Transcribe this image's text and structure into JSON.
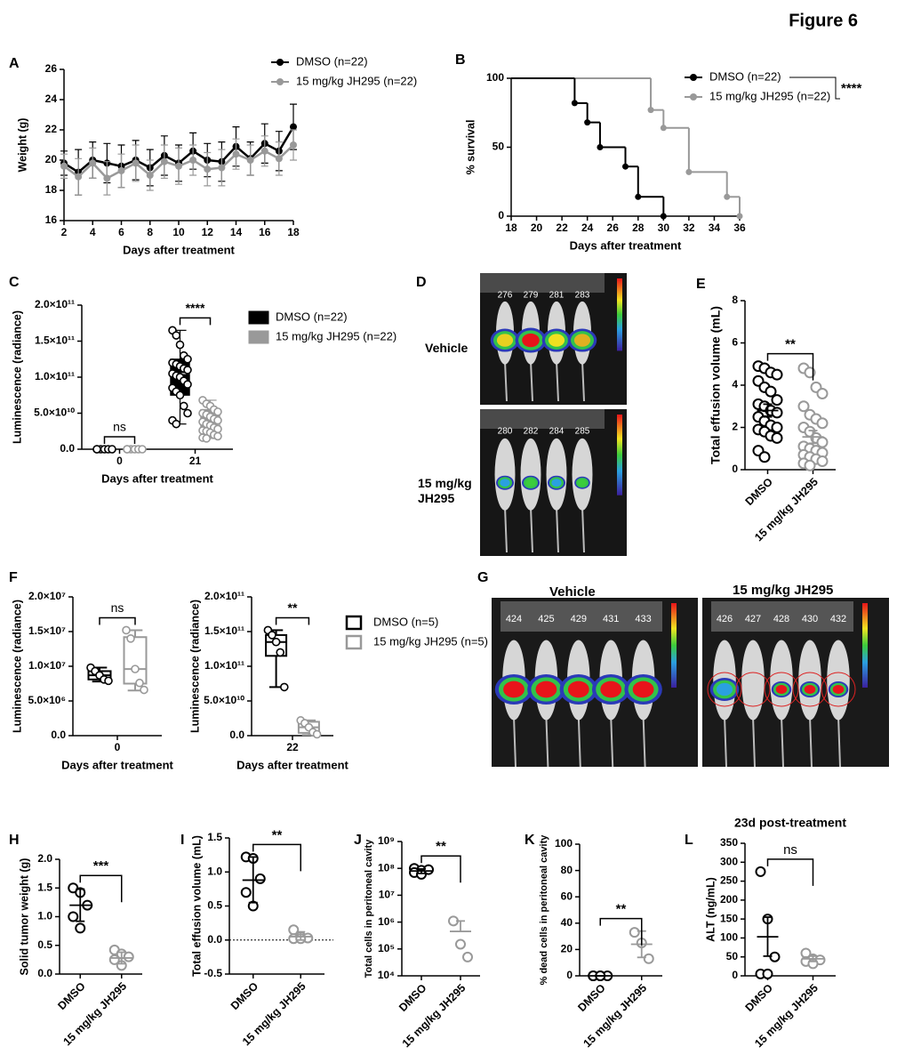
{
  "figure_title": "Figure 6",
  "chart_data": [
    {
      "panel": "A",
      "type": "line",
      "ylabel": "Weight (g)",
      "xlabel": "Days after treatment",
      "x": [
        2,
        3,
        4,
        5,
        6,
        7,
        8,
        9,
        10,
        11,
        12,
        13,
        14,
        15,
        16,
        17,
        18
      ],
      "xlim": [
        2,
        18
      ],
      "xticks": [
        2,
        4,
        6,
        8,
        10,
        12,
        14,
        16,
        18
      ],
      "ylim": [
        16,
        26
      ],
      "yticks": [
        16,
        18,
        20,
        22,
        24,
        26
      ],
      "series": [
        {
          "name": "DMSO (n=22)",
          "color": "#000000",
          "values": [
            19.8,
            19.2,
            20.0,
            19.8,
            19.6,
            20.0,
            19.5,
            20.3,
            19.8,
            20.6,
            20.0,
            19.9,
            20.9,
            20.1,
            21.1,
            20.6,
            22.2
          ],
          "errors": [
            0.8,
            1.5,
            1.2,
            1.3,
            1.4,
            1.3,
            1.2,
            1.3,
            1.2,
            1.2,
            1.1,
            1.3,
            1.3,
            1.1,
            1.3,
            1.3,
            1.5
          ]
        },
        {
          "name": "15 mg/kg JH295 (n=22)",
          "color": "#999999",
          "values": [
            19.6,
            18.9,
            19.8,
            18.8,
            19.3,
            19.8,
            19.0,
            19.9,
            19.6,
            20.0,
            19.4,
            19.5,
            20.4,
            20.0,
            20.6,
            20.1,
            21.0
          ],
          "errors": [
            0.8,
            1.2,
            1.0,
            1.1,
            1.1,
            1.2,
            1.0,
            1.1,
            1.2,
            1.0,
            1.1,
            1.2,
            1.0,
            1.0,
            1.0,
            1.1,
            1.0
          ]
        }
      ]
    },
    {
      "panel": "B",
      "type": "step",
      "ylabel": "% survival",
      "xlabel": "Days after treatment",
      "significance": "****",
      "xlim": [
        18,
        36
      ],
      "xticks": [
        18,
        20,
        22,
        24,
        26,
        28,
        30,
        32,
        34,
        36
      ],
      "ylim": [
        0,
        100
      ],
      "yticks": [
        0,
        50,
        100
      ],
      "series": [
        {
          "name": "DMSO (n=22)",
          "color": "#000000",
          "x": [
            18,
            23,
            24,
            25,
            27,
            28,
            30
          ],
          "values": [
            100,
            82,
            68,
            50,
            36,
            14,
            0
          ]
        },
        {
          "name": "15 mg/kg JH295 (n=22)",
          "color": "#999999",
          "x": [
            18,
            29,
            30,
            32,
            35,
            36
          ],
          "values": [
            100,
            77,
            64,
            32,
            14,
            0
          ]
        }
      ]
    },
    {
      "panel": "C",
      "type": "box",
      "filled": true,
      "ylabel": "Luminescence (radiance)",
      "xlabel": "Days after treatment",
      "categories": [
        "0",
        "21"
      ],
      "significance": [
        "ns",
        "****"
      ],
      "ylim": [
        0,
        200000000000
      ],
      "yticks": [
        {
          "value": 0,
          "label": "0.0"
        },
        {
          "value": 50000000000,
          "label": "5.0×10¹⁰"
        },
        {
          "value": 100000000000,
          "label": "1.0×10¹¹"
        },
        {
          "value": 150000000000,
          "label": "1.5×10¹¹"
        },
        {
          "value": 200000000000,
          "label": "2.0×10¹¹"
        }
      ],
      "series": [
        {
          "name": "DMSO (n=22)",
          "color": "#000000",
          "min": [
            0,
            35000000000
          ],
          "q1": [
            0,
            75000000000
          ],
          "median": [
            0,
            105000000000
          ],
          "q3": [
            0,
            125000000000
          ],
          "max": [
            0,
            165000000000
          ],
          "points": [
            [
              0,
              0,
              0,
              0,
              0,
              0
            ],
            [
              165000000000,
              158000000000,
              145000000000,
              130000000000,
              125000000000,
              120000000000,
              118000000000,
              115000000000,
              112000000000,
              110000000000,
              105000000000,
              102000000000,
              100000000000,
              95000000000,
              90000000000,
              85000000000,
              80000000000,
              75000000000,
              60000000000,
              50000000000,
              40000000000,
              35000000000
            ]
          ]
        },
        {
          "name": "15 mg/kg JH295 (n=22)",
          "color": "#999999",
          "min": [
            0,
            15000000000
          ],
          "q1": [
            0,
            25000000000
          ],
          "median": [
            0,
            35000000000
          ],
          "q3": [
            0,
            55000000000
          ],
          "max": [
            0,
            68000000000
          ],
          "points": [
            [
              0,
              0,
              0,
              0,
              0,
              0
            ],
            [
              68000000000,
              63000000000,
              60000000000,
              55000000000,
              52000000000,
              50000000000,
              48000000000,
              45000000000,
              42000000000,
              40000000000,
              38000000000,
              35000000000,
              33000000000,
              30000000000,
              28000000000,
              26000000000,
              25000000000,
              23000000000,
              20000000000,
              18000000000,
              16000000000,
              15000000000
            ]
          ]
        }
      ]
    },
    {
      "panel": "E",
      "type": "dot",
      "ylabel": "Total effusion volume (mL)",
      "categories": [
        "DMSO",
        "15 mg/kg JH295"
      ],
      "colors": [
        "#000000",
        "#999999"
      ],
      "significance": "**",
      "ylim": [
        0,
        8
      ],
      "yticks": [
        0,
        2,
        4,
        6,
        8
      ],
      "points": [
        [
          4.9,
          4.8,
          4.6,
          4.5,
          4.2,
          3.9,
          3.7,
          3.3,
          3.1,
          3.0,
          2.8,
          2.7,
          2.5,
          2.3,
          2.1,
          2.0,
          1.9,
          1.8,
          1.6,
          1.5,
          0.9,
          0.6
        ],
        [
          4.8,
          4.6,
          3.9,
          3.6,
          3.0,
          2.6,
          2.4,
          2.2,
          2.0,
          1.8,
          1.5,
          1.3,
          1.1,
          1.0,
          0.9,
          0.8,
          0.7,
          0.6,
          0.5,
          0.4,
          0.3,
          0.2
        ]
      ],
      "center": [
        2.8,
        1.55
      ],
      "low": [
        2.5,
        1.25
      ],
      "high": [
        3.1,
        1.85
      ]
    },
    {
      "panel": "F",
      "type": "box",
      "filled": false,
      "ylabel": "Luminescence (radiance)",
      "xlabel": "Days after treatment",
      "categories": [
        "0"
      ],
      "significance": [
        "ns"
      ],
      "ylim": [
        0,
        20000000
      ],
      "yticks": [
        {
          "value": 0,
          "label": "0.0"
        },
        {
          "value": 5000000,
          "label": "5.0×10⁶"
        },
        {
          "value": 10000000,
          "label": "1.0×10⁷"
        },
        {
          "value": 15000000,
          "label": "1.5×10⁷"
        },
        {
          "value": 20000000,
          "label": "2.0×10⁷"
        }
      ],
      "series": [
        {
          "color": "#000000",
          "min": [
            7800000
          ],
          "q1": [
            8100000
          ],
          "median": [
            8700000
          ],
          "q3": [
            9300000
          ],
          "max": [
            9800000
          ],
          "points": [
            [
              9800000,
              9300000,
              8700000,
              8100000,
              7900000
            ]
          ]
        },
        {
          "color": "#999999",
          "min": [
            6500000
          ],
          "q1": [
            7500000
          ],
          "median": [
            9600000
          ],
          "q3": [
            14200000
          ],
          "max": [
            15200000
          ],
          "points": [
            [
              15200000,
              14000000,
              9600000,
              7600000,
              6600000
            ]
          ]
        }
      ]
    },
    {
      "type": "box",
      "filled": false,
      "ylabel": "Luminescence (radiance)",
      "xlabel": "Days after treatment",
      "categories": [
        "22"
      ],
      "significance": [
        "**"
      ],
      "ylim": [
        0,
        200000000000
      ],
      "yticks": [
        {
          "value": 0,
          "label": "0.0"
        },
        {
          "value": 50000000000,
          "label": "5.0×10¹⁰"
        },
        {
          "value": 100000000000,
          "label": "1.0×10¹¹"
        },
        {
          "value": 150000000000,
          "label": "1.5×10¹¹"
        },
        {
          "value": 200000000000,
          "label": "2.0×10¹¹"
        }
      ],
      "series": [
        {
          "name": "DMSO (n=5)",
          "color": "#000000",
          "min": [
            70000000000
          ],
          "q1": [
            115000000000
          ],
          "median": [
            135000000000
          ],
          "q3": [
            145000000000
          ],
          "max": [
            152000000000
          ],
          "points": [
            [
              152000000000,
              145000000000,
              135000000000,
              120000000000,
              70000000000
            ]
          ]
        },
        {
          "name": "15 mg/kg JH295 (n=5)",
          "color": "#999999",
          "min": [
            1000000000
          ],
          "q1": [
            4000000000
          ],
          "median": [
            12000000000
          ],
          "q3": [
            20000000000
          ],
          "max": [
            22000000000
          ],
          "points": [
            [
              22000000000,
              18000000000,
              12000000000,
              5000000000,
              2000000000
            ]
          ]
        }
      ]
    },
    {
      "panel": "H",
      "type": "dot",
      "ylabel": "Solid tumor weight (g)",
      "categories": [
        "DMSO",
        "15 mg/kg JH295"
      ],
      "colors": [
        "#000000",
        "#999999"
      ],
      "significance": "***",
      "ylim": [
        0,
        2
      ],
      "yticks": [
        {
          "value": 0,
          "label": "0.0"
        },
        0.5,
        {
          "value": 1,
          "label": "1.0"
        },
        1.5,
        {
          "value": 2,
          "label": "2.0"
        }
      ],
      "points": [
        [
          1.5,
          1.42,
          1.2,
          1.0,
          0.8
        ],
        [
          0.42,
          0.35,
          0.3,
          0.25,
          0.15
        ]
      ],
      "center": [
        1.2,
        0.28
      ],
      "low": [
        0.92,
        0.18
      ],
      "high": [
        1.48,
        0.38
      ]
    },
    {
      "panel": "I",
      "type": "dot",
      "zero_line": true,
      "ylabel": "Total effusion volume (mL)",
      "categories": [
        "DMSO",
        "15 mg/kg JH295"
      ],
      "colors": [
        "#000000",
        "#999999"
      ],
      "significance": "**",
      "ylim": [
        -0.5,
        1.5
      ],
      "yticks": [
        -0.5,
        {
          "value": 0,
          "label": "0.0"
        },
        0.5,
        {
          "value": 1,
          "label": "1.0"
        },
        1.5
      ],
      "points": [
        [
          1.22,
          1.2,
          0.9,
          0.7,
          0.5
        ],
        [
          0.15,
          0.05,
          0.03,
          0.02,
          0.02
        ]
      ],
      "center": [
        0.88,
        0.05
      ],
      "low": [
        0.55,
        0
      ],
      "high": [
        1.22,
        0.12
      ]
    },
    {
      "panel": "J",
      "type": "dot",
      "ylog": true,
      "ylabel": "Total cells in peritoneal cavity",
      "categories": [
        "DMSO",
        "15 mg/kg JH295"
      ],
      "colors": [
        "#000000",
        "#999999"
      ],
      "significance": "**",
      "ylim": [
        10000,
        1000000000
      ],
      "yticks": [
        {
          "value": 10000,
          "label": "10⁴"
        },
        {
          "value": 100000,
          "label": "10⁵"
        },
        {
          "value": 1000000,
          "label": "10⁶"
        },
        {
          "value": 10000000,
          "label": "10⁷"
        },
        {
          "value": 100000000,
          "label": "10⁸"
        },
        {
          "value": 1000000000,
          "label": "10⁹"
        }
      ],
      "points": [
        [
          100000000,
          85000000,
          90000000,
          70000000,
          60000000
        ],
        [
          1100000,
          150000,
          50000
        ]
      ],
      "center": [
        80000000,
        450000
      ],
      "low": [
        65000000,
        null
      ],
      "high": [
        95000000,
        1100000
      ]
    },
    {
      "panel": "K",
      "type": "dot",
      "ylabel": "% dead cells in peritoneal cavity",
      "categories": [
        "DMSO",
        "15 mg/kg JH295"
      ],
      "colors": [
        "#000000",
        "#999999"
      ],
      "significance": "**",
      "ylim": [
        0,
        100
      ],
      "yticks": [
        0,
        20,
        40,
        60,
        80,
        100
      ],
      "points": [
        [
          0,
          0,
          0,
          0,
          0
        ],
        [
          33,
          25,
          13
        ]
      ],
      "center": [
        0,
        24
      ],
      "low": [
        0,
        14
      ],
      "high": [
        0,
        34
      ]
    },
    {
      "panel": "L",
      "type": "dot",
      "title": "23d post-treatment",
      "ylabel": "ALT (ng/mL)",
      "categories": [
        "DMSO",
        "15 mg/kg JH295"
      ],
      "colors": [
        "#000000",
        "#999999"
      ],
      "significance": "ns",
      "ylim": [
        0,
        350
      ],
      "yticks": [
        0,
        50,
        100,
        150,
        200,
        250,
        300,
        350
      ],
      "points": [
        [
          275,
          150,
          50,
          5,
          5
        ],
        [
          60,
          45,
          42,
          38,
          32
        ]
      ],
      "center": [
        103,
        45
      ],
      "low": [
        52,
        38
      ],
      "high": [
        155,
        52
      ]
    }
  ],
  "images": [
    {
      "panel": "D",
      "rows": [
        {
          "label": "Vehicle",
          "ids": [
            "276",
            "279",
            "281",
            "283"
          ]
        },
        {
          "label": "15 mg/kg JH295",
          "ids": [
            "280",
            "282",
            "284",
            "285"
          ]
        }
      ]
    },
    {
      "panel": "G",
      "columns": [
        {
          "label": "Vehicle",
          "ids": [
            "424",
            "425",
            "429",
            "431",
            "433"
          ]
        },
        {
          "label": "15 mg/kg JH295",
          "ids": [
            "426",
            "427",
            "428",
            "430",
            "432"
          ]
        }
      ]
    }
  ]
}
